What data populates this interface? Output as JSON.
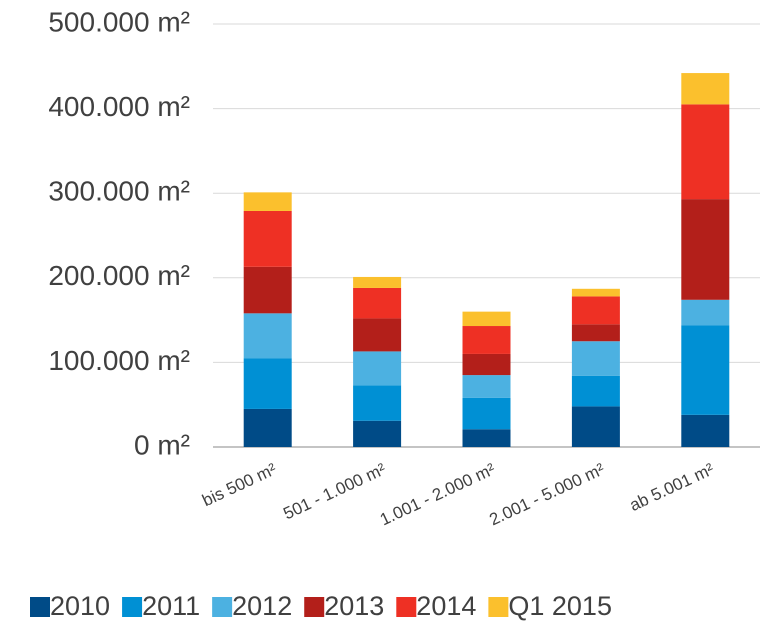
{
  "chart_data": {
    "type": "stacked_bar",
    "categories": [
      "bis 500 m²",
      "501 - 1.000 m²",
      "1.001 - 2.000 m²",
      "2.001 - 5.000 m²",
      "ab 5.001 m²"
    ],
    "series": [
      {
        "name": "2010",
        "color": "#004b87",
        "values": [
          45000,
          31000,
          21000,
          48000,
          38000
        ]
      },
      {
        "name": "2011",
        "color": "#0090d4",
        "values": [
          60000,
          42000,
          37000,
          36000,
          106000
        ]
      },
      {
        "name": "2012",
        "color": "#4cb1e1",
        "values": [
          53000,
          40000,
          27000,
          41000,
          30000
        ]
      },
      {
        "name": "2013",
        "color": "#b31f1a",
        "values": [
          55000,
          39000,
          25000,
          20000,
          119000
        ]
      },
      {
        "name": "2014",
        "color": "#ee3024",
        "values": [
          66000,
          36000,
          33000,
          33000,
          112000
        ]
      },
      {
        "name": "Q1 2015",
        "color": "#fbc02d",
        "values": [
          22000,
          13000,
          17000,
          9000,
          37000
        ]
      }
    ],
    "ylim": [
      0,
      500000
    ],
    "yticks": [
      {
        "value": 0,
        "label": "0 m²"
      },
      {
        "value": 100000,
        "label": "100.000 m²"
      },
      {
        "value": 200000,
        "label": "200.000 m²"
      },
      {
        "value": 300000,
        "label": "300.000 m²"
      },
      {
        "value": 400000,
        "label": "400.000 m²"
      },
      {
        "value": 500000,
        "label": "500.000 m²"
      }
    ],
    "grid": true,
    "legend": "bottom"
  }
}
